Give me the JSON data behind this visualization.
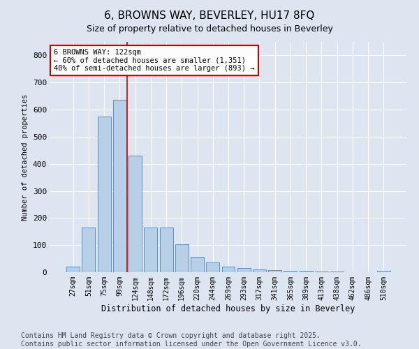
{
  "title": "6, BROWNS WAY, BEVERLEY, HU17 8FQ",
  "subtitle": "Size of property relative to detached houses in Beverley",
  "xlabel": "Distribution of detached houses by size in Beverley",
  "ylabel": "Number of detached properties",
  "categories": [
    "27sqm",
    "51sqm",
    "75sqm",
    "99sqm",
    "124sqm",
    "148sqm",
    "172sqm",
    "196sqm",
    "220sqm",
    "244sqm",
    "269sqm",
    "293sqm",
    "317sqm",
    "341sqm",
    "365sqm",
    "389sqm",
    "413sqm",
    "438sqm",
    "462sqm",
    "486sqm",
    "510sqm"
  ],
  "values": [
    20,
    165,
    575,
    635,
    430,
    165,
    165,
    103,
    57,
    37,
    20,
    15,
    10,
    8,
    5,
    4,
    3,
    2,
    1,
    1,
    5
  ],
  "bar_color": "#b8cfe8",
  "bar_edge_color": "#5a8fc0",
  "vline_color": "#cc0000",
  "annotation_text": "6 BROWNS WAY: 122sqm\n← 60% of detached houses are smaller (1,351)\n40% of semi-detached houses are larger (893) →",
  "annotation_box_color": "#ffffff",
  "annotation_box_edge_color": "#cc0000",
  "ylim": [
    0,
    850
  ],
  "yticks": [
    0,
    100,
    200,
    300,
    400,
    500,
    600,
    700,
    800
  ],
  "background_color": "#dde5f0",
  "plot_bg_color": "#dde5f0",
  "footer": "Contains HM Land Registry data © Crown copyright and database right 2025.\nContains public sector information licensed under the Open Government Licence v3.0.",
  "title_fontsize": 11,
  "subtitle_fontsize": 9,
  "footer_fontsize": 7,
  "vline_bar_index": 4
}
